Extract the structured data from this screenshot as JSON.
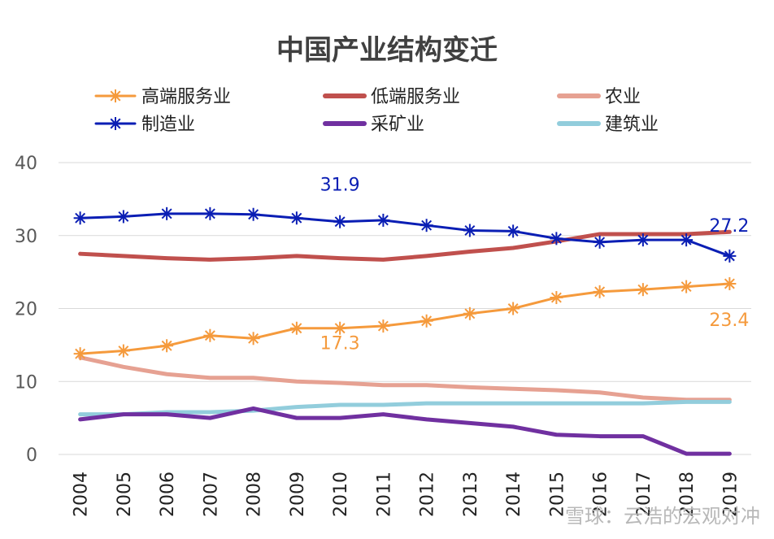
{
  "chart_data": {
    "type": "line",
    "title": "中国产业结构变迁",
    "xlabel": "",
    "ylabel": "",
    "x": [
      "2004",
      "2005",
      "2006",
      "2007",
      "2008",
      "2009",
      "2010",
      "2011",
      "2012",
      "2013",
      "2014",
      "2015",
      "2016",
      "2017",
      "2018",
      "2019"
    ],
    "ylim": [
      0,
      40
    ],
    "yticks": [
      "0",
      "10",
      "20",
      "30",
      "40"
    ],
    "grid": true,
    "legend_position": "top",
    "series": [
      {
        "name": "高端服务业",
        "color": "#F59A3C",
        "marker": "star",
        "values": [
          13.8,
          14.2,
          14.9,
          16.3,
          15.9,
          17.3,
          17.3,
          17.6,
          18.3,
          19.3,
          20.0,
          21.5,
          22.3,
          22.6,
          23.0,
          23.4
        ]
      },
      {
        "name": "低端服务业",
        "color": "#C0504D",
        "marker": "none",
        "values": [
          27.5,
          27.2,
          26.9,
          26.7,
          26.9,
          27.2,
          26.9,
          26.7,
          27.2,
          27.8,
          28.3,
          29.2,
          30.2,
          30.2,
          30.2,
          30.5
        ]
      },
      {
        "name": "农业",
        "color": "#E6A192",
        "marker": "none",
        "values": [
          13.3,
          12.0,
          11.0,
          10.5,
          10.5,
          10.0,
          9.8,
          9.5,
          9.5,
          9.2,
          9.0,
          8.8,
          8.5,
          7.8,
          7.5,
          7.5
        ]
      },
      {
        "name": "制造业",
        "color": "#0A1EB4",
        "marker": "star",
        "values": [
          32.4,
          32.6,
          33.0,
          33.0,
          32.9,
          32.4,
          31.9,
          32.1,
          31.4,
          30.7,
          30.6,
          29.6,
          29.1,
          29.4,
          29.4,
          27.2
        ]
      },
      {
        "name": "采矿业",
        "color": "#7030A0",
        "marker": "none",
        "values": [
          4.8,
          5.5,
          5.5,
          5.0,
          6.3,
          5.0,
          5.0,
          5.5,
          4.8,
          4.3,
          3.8,
          2.7,
          2.5,
          2.5,
          0.1,
          0.1
        ]
      },
      {
        "name": "建筑业",
        "color": "#92CDDC",
        "marker": "none",
        "values": [
          5.5,
          5.5,
          5.8,
          5.8,
          6.0,
          6.5,
          6.8,
          6.8,
          7.0,
          7.0,
          7.0,
          7.0,
          7.0,
          7.0,
          7.2,
          7.2
        ]
      }
    ],
    "annotations": [
      {
        "text": "31.9",
        "series": "制造业",
        "x": "2010",
        "color": "#0A1EB4"
      },
      {
        "text": "27.2",
        "series": "制造业",
        "x": "2019",
        "color": "#0A1EB4"
      },
      {
        "text": "17.3",
        "series": "高端服务业",
        "x": "2010",
        "color": "#F59A3C"
      },
      {
        "text": "23.4",
        "series": "高端服务业",
        "x": "2019",
        "color": "#F59A3C"
      }
    ]
  },
  "watermark": "雪球：云浩的宏观对冲"
}
